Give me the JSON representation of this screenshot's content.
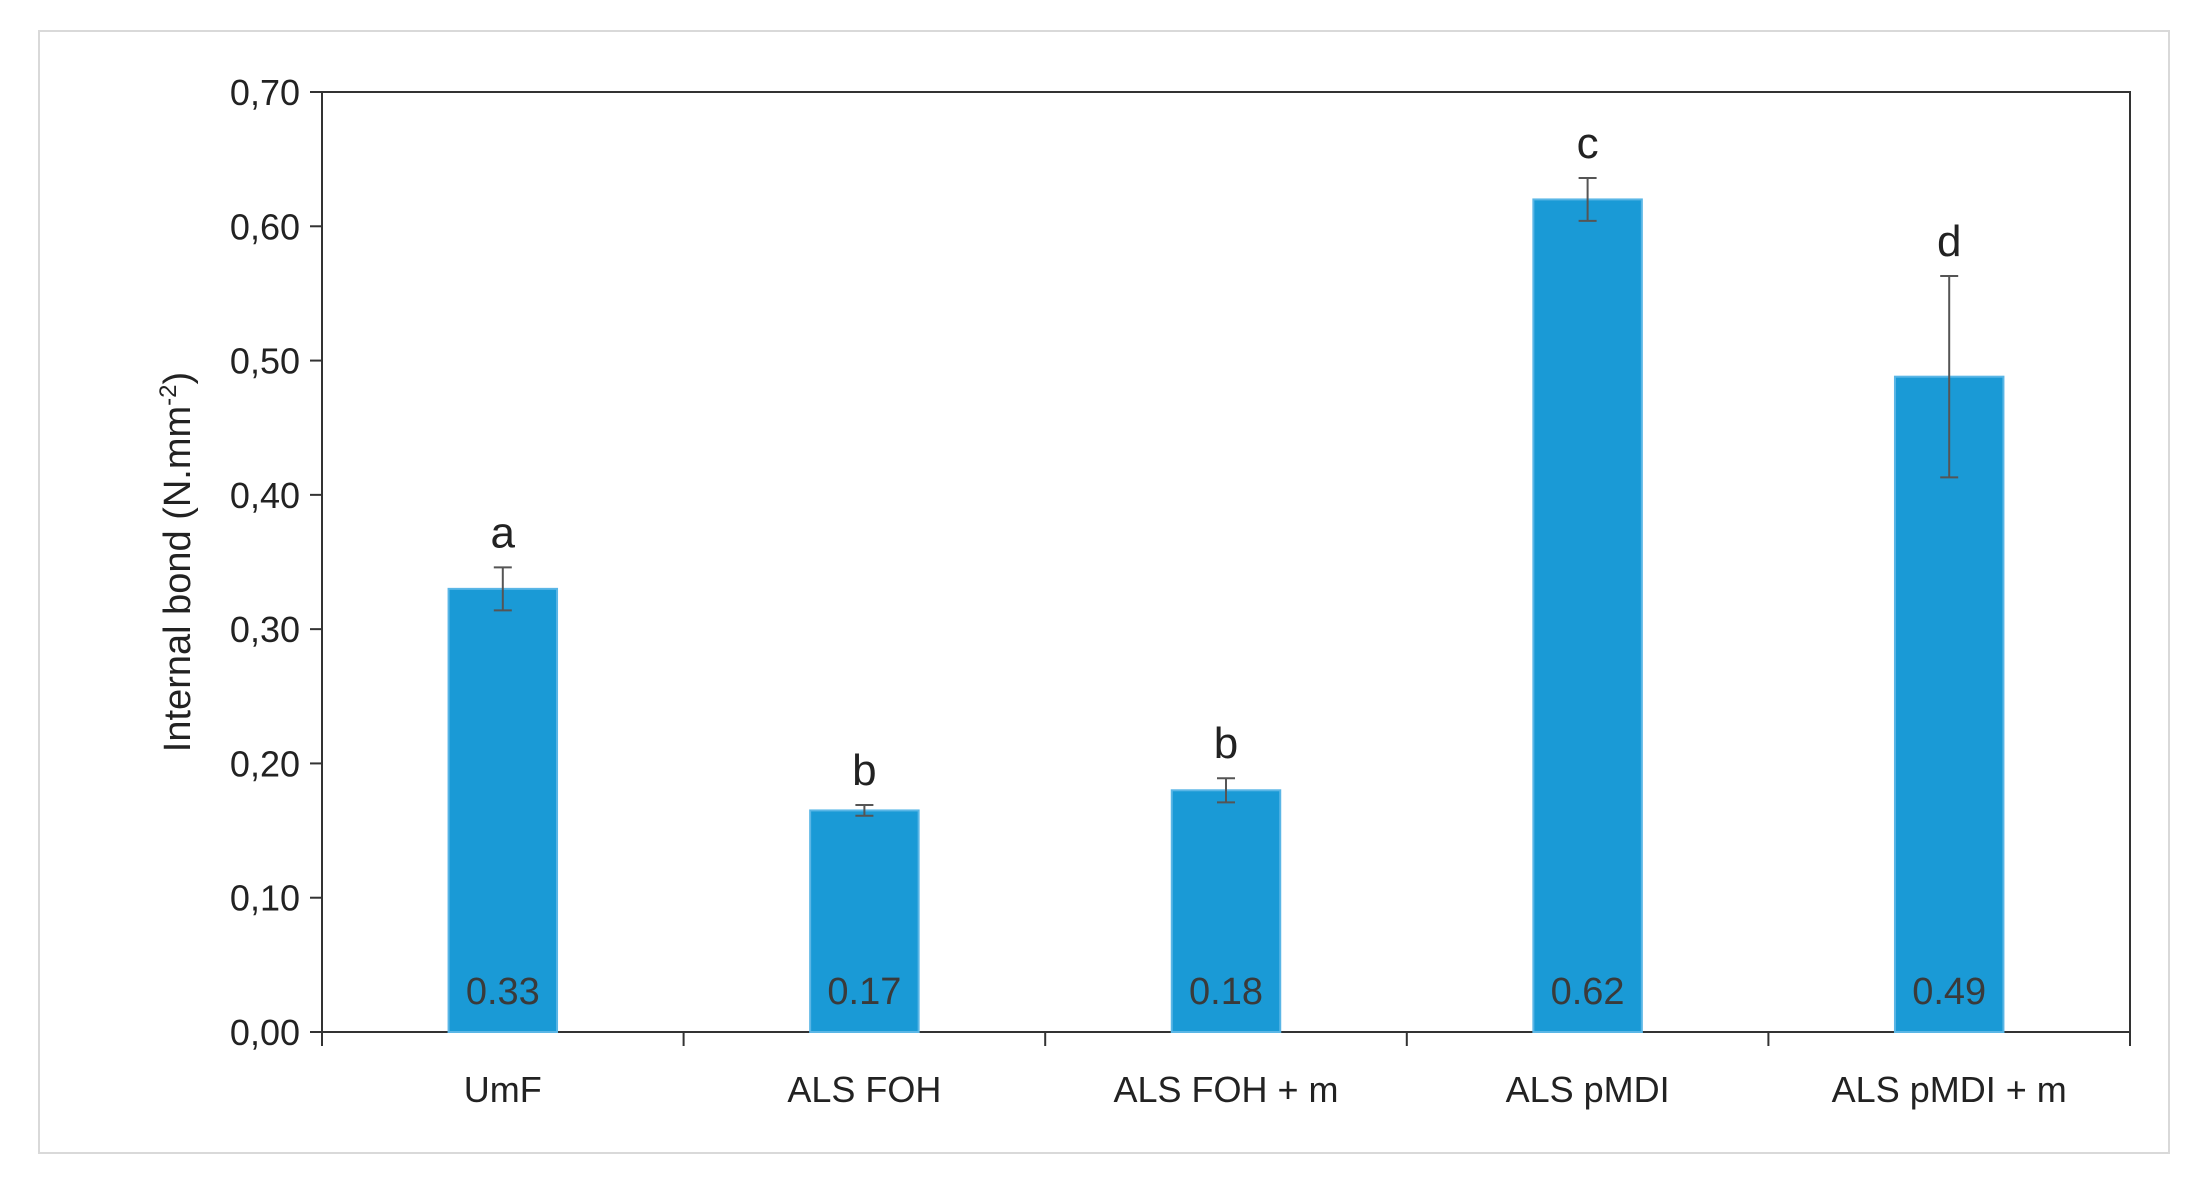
{
  "chart_data": {
    "type": "bar",
    "title": "",
    "xlabel": "",
    "ylabel": "Internal bond (N.mm",
    "ylabel_sup": "-2",
    "ylabel_close": ")",
    "ylim": [
      0,
      0.7
    ],
    "yticks": [
      "0,00",
      "0,10",
      "0,20",
      "0,30",
      "0,40",
      "0,50",
      "0,60",
      "0,70"
    ],
    "ytick_values": [
      0,
      0.1,
      0.2,
      0.3,
      0.4,
      0.5,
      0.6,
      0.7
    ],
    "categories": [
      "UmF",
      "ALS FOH",
      "ALS FOH + m",
      "ALS pMDI",
      "ALS pMDI + m"
    ],
    "values": [
      0.33,
      0.165,
      0.18,
      0.62,
      0.488
    ],
    "data_labels": [
      "0.33",
      "0.17",
      "0.18",
      "0.62",
      "0.49"
    ],
    "error": [
      0.016,
      0.004,
      0.009,
      0.016,
      0.075
    ],
    "significance_letters": [
      "a",
      "b",
      "b",
      "c",
      "d"
    ],
    "bar_color": "#1a9ad6",
    "grid": false,
    "legend": "none"
  }
}
